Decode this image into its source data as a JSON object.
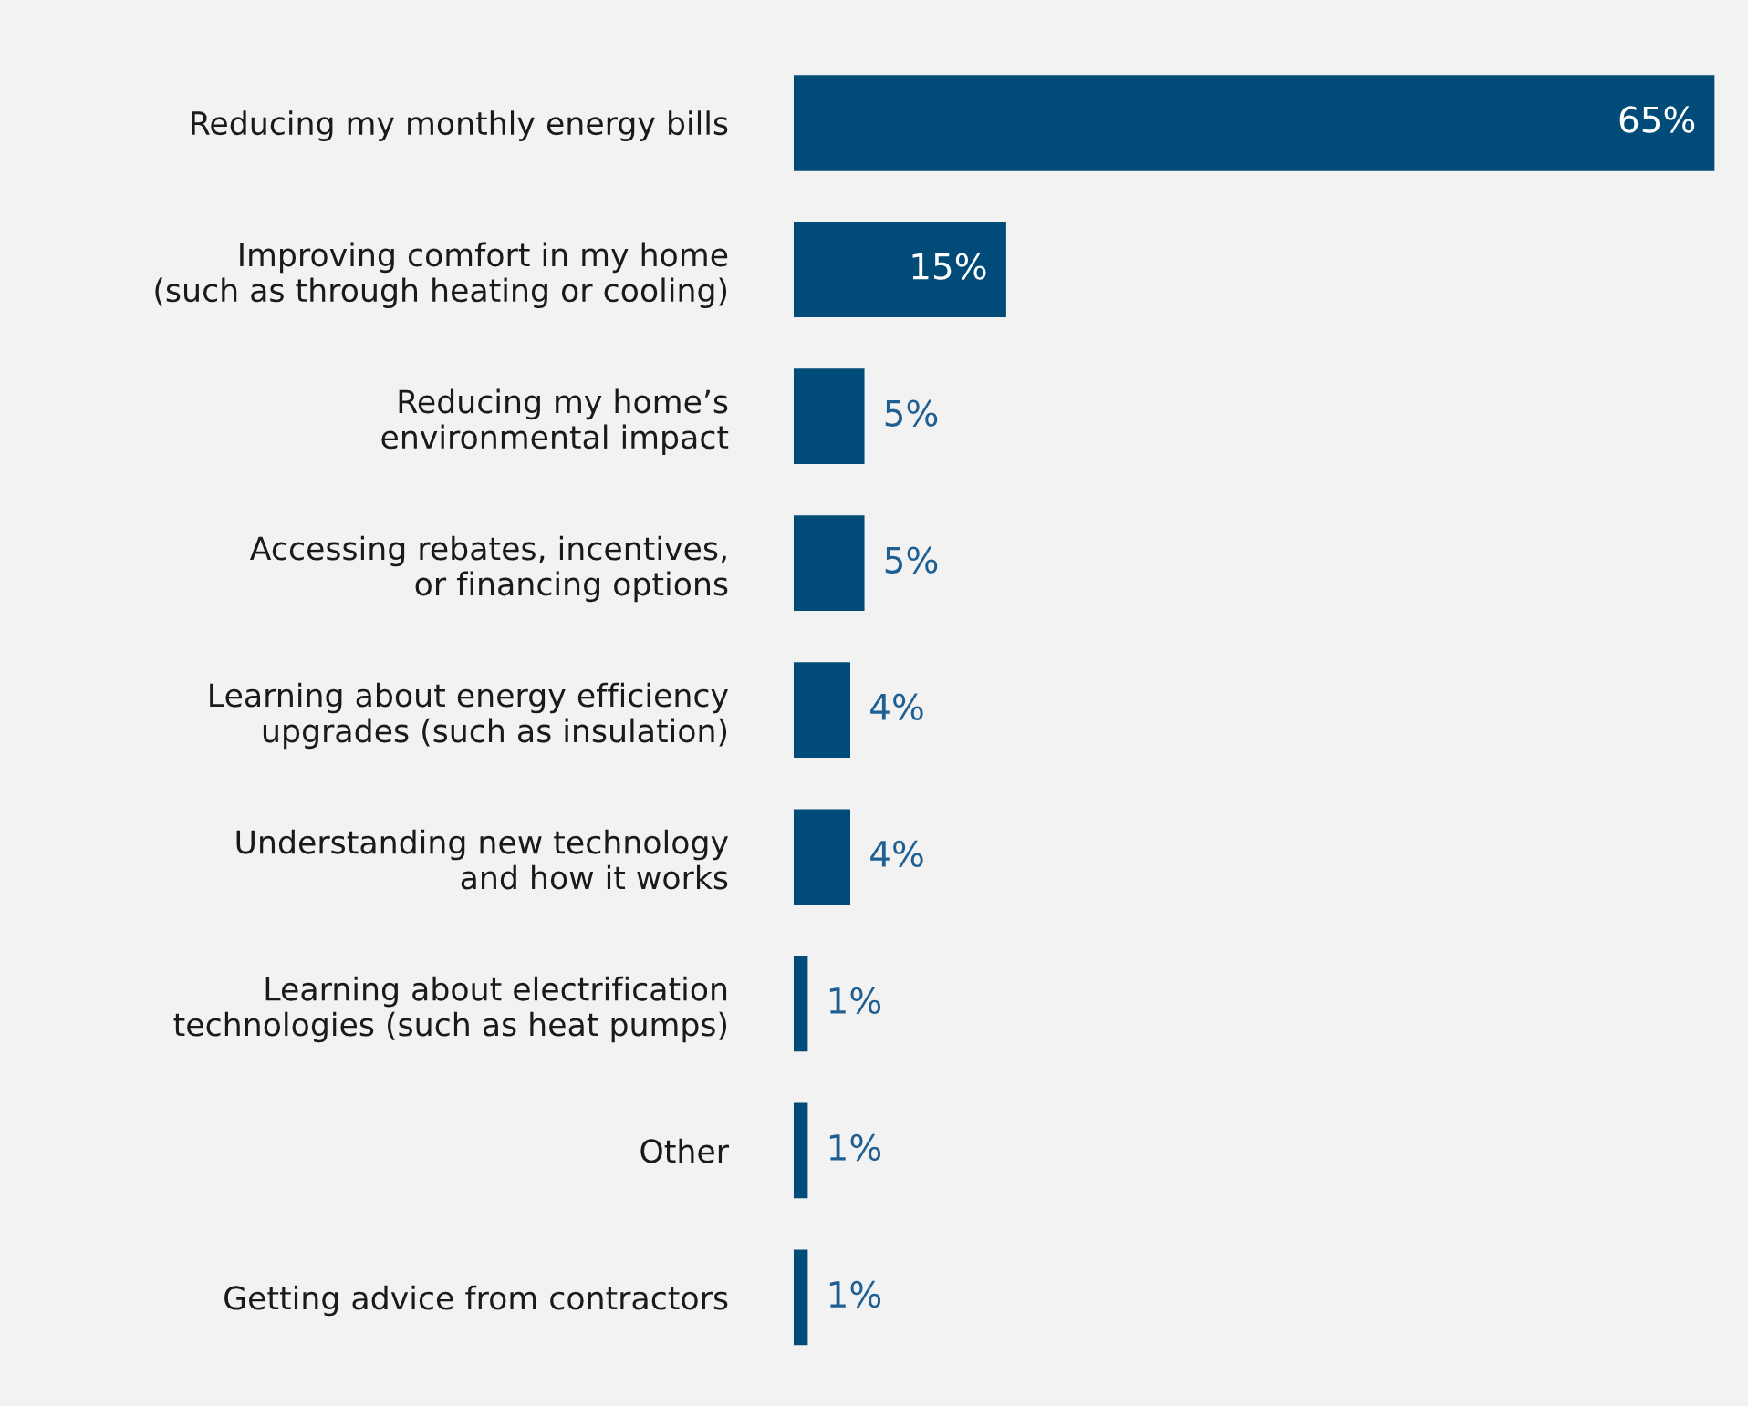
{
  "chart_data": {
    "type": "bar",
    "orientation": "horizontal",
    "categories": [
      "Reducing my monthly energy bills",
      "Improving comfort in my home\n(such as through heating or cooling)",
      "Reducing my home’s\nenvironmental impact",
      "Accessing rebates, incentives,\nor financing options",
      "Learning about energy efficiency\nupgrades (such as insulation)",
      "Understanding new technology\nand how it works",
      "Learning about electrification\ntechnologies (such as heat pumps)",
      "Other",
      "Getting advice from contractors"
    ],
    "values": [
      65,
      15,
      5,
      5,
      4,
      4,
      1,
      1,
      1
    ],
    "value_labels": [
      "65%",
      "15%",
      "5%",
      "5%",
      "4%",
      "4%",
      "1%",
      "1%",
      "1%"
    ],
    "color": "#004b78",
    "tick_labels": "y",
    "grid": false,
    "legend": false
  }
}
